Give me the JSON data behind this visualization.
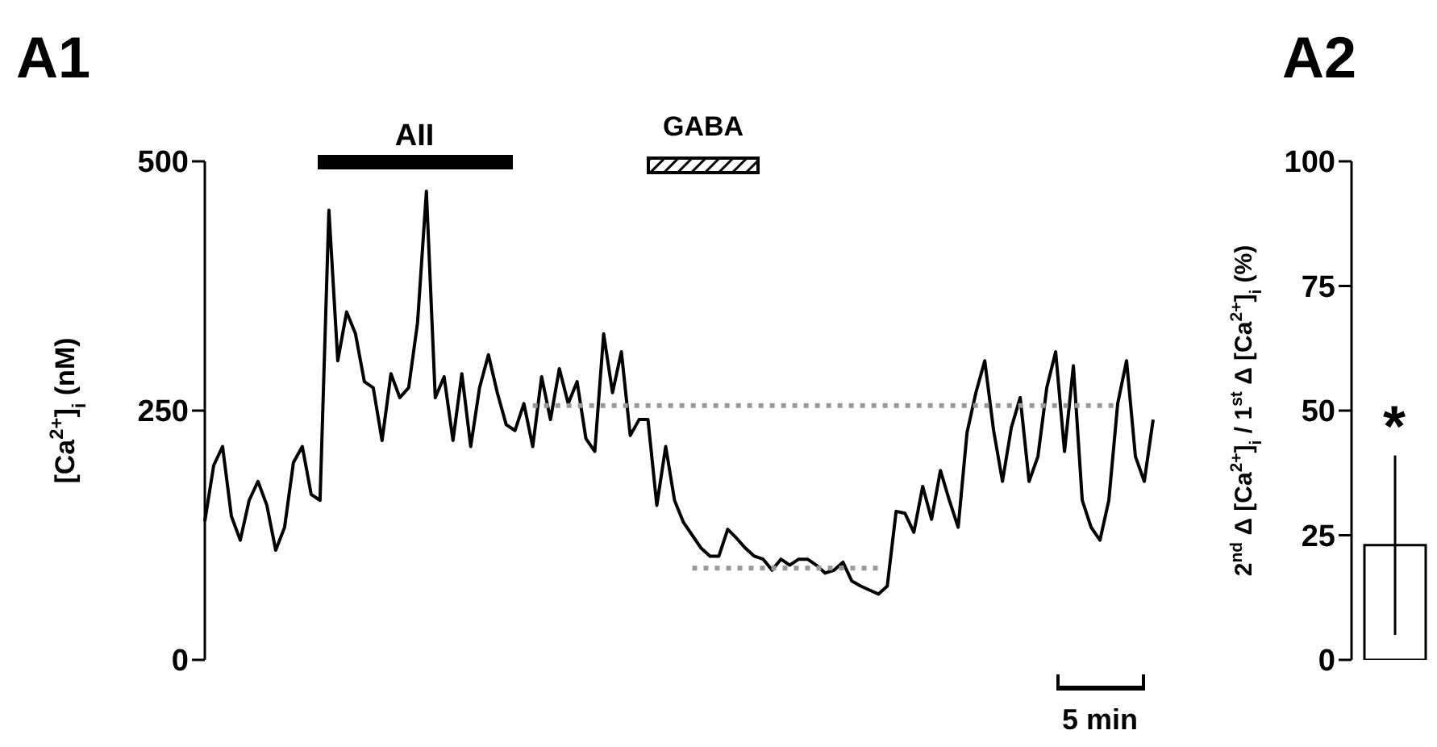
{
  "chart_data": [
    {
      "type": "line",
      "title": "A1",
      "ylabel": "[Ca$^{2+}$]$_{i}$ (nM)",
      "ylim": [
        0,
        500
      ],
      "yticks": [
        0,
        250,
        500
      ],
      "tick_labels": "y",
      "annotations": [
        "AII",
        "GABA",
        "5 min"
      ],
      "categories": [
        null,
        null,
        null,
        null,
        null,
        null,
        null,
        null,
        null,
        null,
        null,
        null,
        null,
        null,
        null,
        null,
        null,
        null,
        null,
        null,
        null,
        null,
        null,
        null,
        null,
        null,
        null,
        null,
        null,
        null,
        null,
        null,
        null,
        null,
        null,
        null,
        null,
        null,
        null,
        null,
        null,
        null,
        null,
        null,
        null,
        null,
        null,
        null,
        null,
        null,
        null,
        null,
        null,
        null,
        null,
        null,
        null,
        null,
        null,
        null,
        null,
        null,
        null,
        null,
        null,
        null,
        null,
        null,
        null,
        null,
        null,
        null,
        null,
        null,
        null,
        null,
        null,
        null,
        null,
        null,
        null,
        null,
        null,
        null,
        null,
        null,
        null,
        null,
        null,
        null,
        null,
        null,
        null,
        null,
        null,
        null,
        null,
        null,
        null,
        null,
        null,
        null,
        null,
        null,
        null,
        null,
        null,
        null
      ],
      "series": [
        {
          "color": "#000000",
          "line_style": "solid",
          "values": [
            139,
            195,
            214,
            144,
            120,
            160,
            179,
            155,
            110,
            133,
            198,
            214,
            166,
            160,
            451,
            300,
            349,
            327,
            279,
            273,
            220,
            287,
            263,
            273,
            338,
            470,
            263,
            284,
            220,
            287,
            214,
            273,
            306,
            268,
            236,
            230,
            257,
            214,
            284,
            241,
            292,
            257,
            279,
            222,
            209,
            327,
            268,
            309,
            225,
            241,
            241,
            155,
            214,
            160,
            138,
            125,
            112,
            104,
            104,
            131,
            122,
            112,
            104,
            101,
            90,
            101,
            95,
            101,
            101,
            95,
            87,
            90,
            98,
            79,
            74,
            70,
            66,
            74,
            149,
            147,
            128,
            174,
            141,
            190,
            160,
            133,
            228,
            268,
            300,
            230,
            179,
            233,
            263,
            179,
            204,
            273,
            309,
            209,
            295,
            160,
            133,
            120,
            160,
            257,
            300,
            204,
            179,
            241
          ]
        },
        {
          "color": "#999999",
          "line_style": "dotted",
          "values": [
            null,
            null,
            null,
            null,
            null,
            null,
            null,
            null,
            null,
            null,
            null,
            null,
            null,
            null,
            null,
            null,
            null,
            null,
            null,
            null,
            null,
            null,
            null,
            null,
            null,
            null,
            null,
            null,
            null,
            null,
            null,
            null,
            null,
            null,
            null,
            null,
            null,
            255,
            255,
            255,
            255,
            255,
            255,
            255,
            255,
            255,
            255,
            255,
            255,
            255,
            255,
            255,
            255,
            255,
            255,
            255,
            255,
            255,
            255,
            255,
            255,
            255,
            255,
            255,
            255,
            255,
            255,
            255,
            255,
            255,
            255,
            255,
            255,
            255,
            255,
            255,
            255,
            255,
            255,
            255,
            255,
            255,
            255,
            255,
            255,
            255,
            255,
            255,
            255,
            255,
            255,
            255,
            255,
            255,
            255,
            255,
            255,
            255,
            255,
            255,
            255,
            255,
            255,
            255,
            null,
            null,
            null,
            null
          ]
        },
        {
          "color": "#999999",
          "line_style": "dotted",
          "values": [
            null,
            null,
            null,
            null,
            null,
            null,
            null,
            null,
            null,
            null,
            null,
            null,
            null,
            null,
            null,
            null,
            null,
            null,
            null,
            null,
            null,
            null,
            null,
            null,
            null,
            null,
            null,
            null,
            null,
            null,
            null,
            null,
            null,
            null,
            null,
            null,
            null,
            null,
            null,
            null,
            null,
            null,
            null,
            null,
            null,
            null,
            null,
            null,
            null,
            null,
            null,
            null,
            null,
            null,
            null,
            92,
            92,
            92,
            92,
            92,
            92,
            92,
            92,
            92,
            92,
            92,
            92,
            92,
            92,
            92,
            92,
            92,
            92,
            92,
            92,
            92,
            92,
            null,
            null,
            null,
            null,
            null,
            null,
            null,
            null,
            null,
            null,
            null,
            null,
            null,
            null,
            null,
            null,
            null,
            null,
            null,
            null,
            null,
            null,
            null,
            null,
            null,
            null,
            null,
            null,
            null,
            null,
            null
          ]
        }
      ]
    },
    {
      "type": "bar",
      "title": "A2",
      "ylabel": "2$^{nd}$ Δ [Ca$^{2+}$]$_{i}$ / 1$^{st}$ Δ [Ca$^{2+}$]$_{i}$ (%)",
      "categories": [
        null
      ],
      "values": [
        23
      ],
      "errors": [
        18
      ],
      "color": "#ffffff",
      "ylim": [
        0,
        100
      ],
      "yticks": [
        0,
        25,
        50,
        75,
        100
      ],
      "annotations": [
        "*"
      ]
    }
  ]
}
